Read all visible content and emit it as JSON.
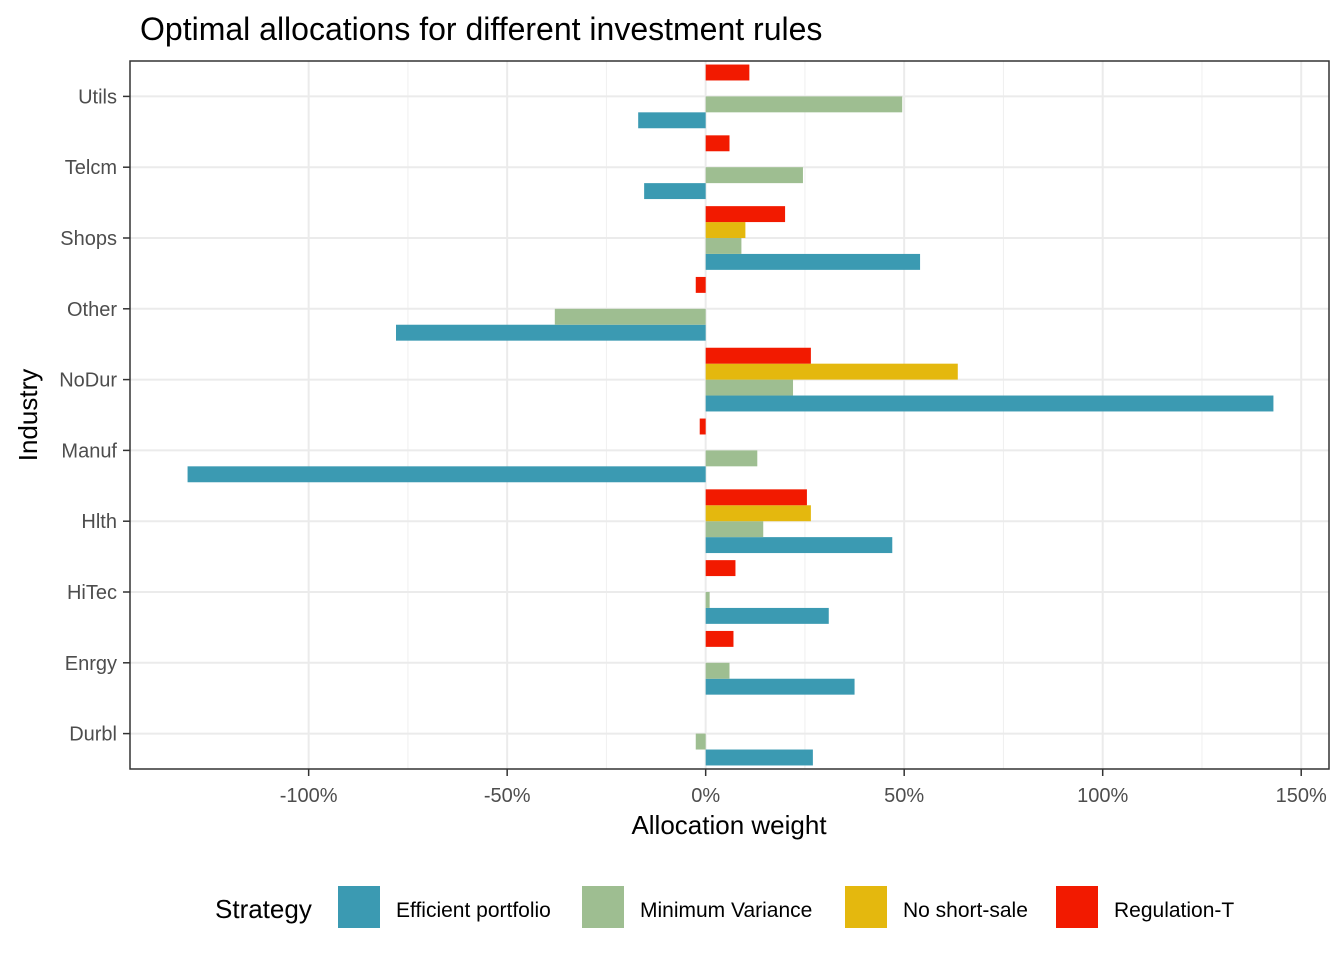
{
  "chart_data": {
    "type": "bar",
    "orientation": "horizontal",
    "title": "Optimal allocations for different investment rules",
    "xlabel": "Allocation weight",
    "ylabel": "Industry",
    "xlim": [
      -1.45,
      1.57
    ],
    "x_ticks": [
      -1.0,
      -0.5,
      0.0,
      0.5,
      1.0,
      1.5
    ],
    "x_tick_labels": [
      "-100%",
      "-50%",
      "0%",
      "50%",
      "100%",
      "150%"
    ],
    "categories": [
      "Durbl",
      "Enrgy",
      "HiTec",
      "Hlth",
      "Manuf",
      "NoDur",
      "Other",
      "Shops",
      "Telcm",
      "Utils"
    ],
    "grid": true,
    "legend": {
      "title": "Strategy",
      "position": "bottom"
    },
    "series": [
      {
        "name": "Efficient portfolio",
        "color": "#3B9AB2",
        "values": [
          0.27,
          0.375,
          0.31,
          0.47,
          -1.305,
          1.43,
          -0.78,
          0.54,
          -0.155,
          -0.17
        ]
      },
      {
        "name": "Minimum Variance",
        "color": "#9EBE91",
        "values": [
          -0.025,
          0.06,
          0.01,
          0.145,
          0.13,
          0.22,
          -0.38,
          0.09,
          0.245,
          0.495
        ]
      },
      {
        "name": "No short-sale",
        "color": "#E4B80E",
        "values": [
          0,
          0,
          0,
          0.265,
          0,
          0.635,
          0,
          0.1,
          0,
          0
        ]
      },
      {
        "name": "Regulation-T",
        "color": "#F21A00",
        "values": [
          0,
          0.07,
          0.075,
          0.255,
          -0.015,
          0.265,
          -0.025,
          0.2,
          0.06,
          0.11
        ]
      }
    ]
  }
}
